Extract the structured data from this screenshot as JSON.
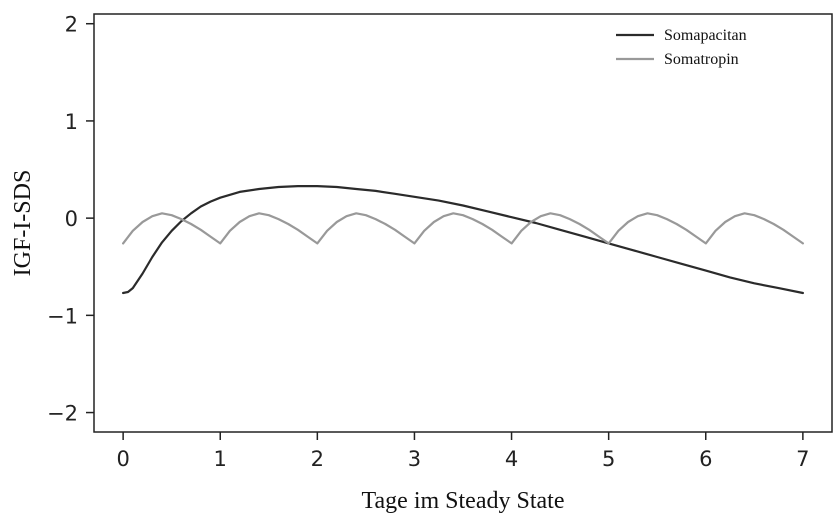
{
  "chart_data": {
    "type": "line",
    "xlabel": "Tage im Steady State",
    "ylabel": "IGF-I-SDS",
    "xlim": [
      -0.3,
      7.3
    ],
    "ylim": [
      -2.2,
      2.1
    ],
    "x_ticks": [
      0,
      1,
      2,
      3,
      4,
      5,
      6,
      7
    ],
    "x_tick_labels": [
      "0",
      "1",
      "2",
      "3",
      "4",
      "5",
      "6",
      "7"
    ],
    "y_ticks": [
      -2,
      -1,
      0,
      1,
      2
    ],
    "y_tick_labels": [
      "−2",
      "−1",
      "0",
      "1",
      "2"
    ],
    "grid": false,
    "legend_position": "top-right",
    "series": [
      {
        "name": "Somapacitan",
        "color": "#2b2b2b",
        "x": [
          0,
          0.05,
          0.1,
          0.2,
          0.3,
          0.4,
          0.5,
          0.6,
          0.7,
          0.8,
          0.9,
          1.0,
          1.2,
          1.4,
          1.6,
          1.8,
          2.0,
          2.2,
          2.4,
          2.6,
          2.8,
          3.0,
          3.25,
          3.5,
          3.75,
          4.0,
          4.25,
          4.5,
          4.75,
          5.0,
          5.25,
          5.5,
          5.75,
          6.0,
          6.25,
          6.5,
          6.75,
          7.0
        ],
        "y": [
          -0.77,
          -0.76,
          -0.72,
          -0.57,
          -0.4,
          -0.25,
          -0.13,
          -0.03,
          0.05,
          0.12,
          0.17,
          0.21,
          0.27,
          0.3,
          0.32,
          0.33,
          0.33,
          0.32,
          0.3,
          0.28,
          0.25,
          0.22,
          0.18,
          0.13,
          0.07,
          0.01,
          -0.05,
          -0.12,
          -0.19,
          -0.26,
          -0.33,
          -0.4,
          -0.47,
          -0.54,
          -0.61,
          -0.67,
          -0.72,
          -0.77
        ]
      },
      {
        "name": "Somatropin",
        "color": "#999999",
        "peak_day_offset": 0.4,
        "trough_value": -0.26,
        "peak_value": 0.05,
        "x": [
          0,
          0.1,
          0.2,
          0.3,
          0.4,
          0.5,
          0.6,
          0.7,
          0.8,
          0.9,
          1.0,
          1.1,
          1.2,
          1.3,
          1.4,
          1.5,
          1.6,
          1.7,
          1.8,
          1.9,
          2.0,
          2.1,
          2.2,
          2.3,
          2.4,
          2.5,
          2.6,
          2.7,
          2.8,
          2.9,
          3.0,
          3.1,
          3.2,
          3.3,
          3.4,
          3.5,
          3.6,
          3.7,
          3.8,
          3.9,
          4.0,
          4.1,
          4.2,
          4.3,
          4.4,
          4.5,
          4.6,
          4.7,
          4.8,
          4.9,
          5.0,
          5.1,
          5.2,
          5.3,
          5.4,
          5.5,
          5.6,
          5.7,
          5.8,
          5.9,
          6.0,
          6.1,
          6.2,
          6.3,
          6.4,
          6.5,
          6.6,
          6.7,
          6.8,
          6.9,
          7.0
        ],
        "y": [
          -0.26,
          -0.13,
          -0.04,
          0.02,
          0.05,
          0.03,
          -0.01,
          -0.06,
          -0.12,
          -0.19,
          -0.26,
          -0.13,
          -0.04,
          0.02,
          0.05,
          0.03,
          -0.01,
          -0.06,
          -0.12,
          -0.19,
          -0.26,
          -0.13,
          -0.04,
          0.02,
          0.05,
          0.03,
          -0.01,
          -0.06,
          -0.12,
          -0.19,
          -0.26,
          -0.13,
          -0.04,
          0.02,
          0.05,
          0.03,
          -0.01,
          -0.06,
          -0.12,
          -0.19,
          -0.26,
          -0.13,
          -0.04,
          0.02,
          0.05,
          0.03,
          -0.01,
          -0.06,
          -0.12,
          -0.19,
          -0.26,
          -0.13,
          -0.04,
          0.02,
          0.05,
          0.03,
          -0.01,
          -0.06,
          -0.12,
          -0.19,
          -0.26,
          -0.13,
          -0.04,
          0.02,
          0.05,
          0.03,
          -0.01,
          -0.06,
          -0.12,
          -0.19,
          -0.26
        ]
      }
    ]
  }
}
